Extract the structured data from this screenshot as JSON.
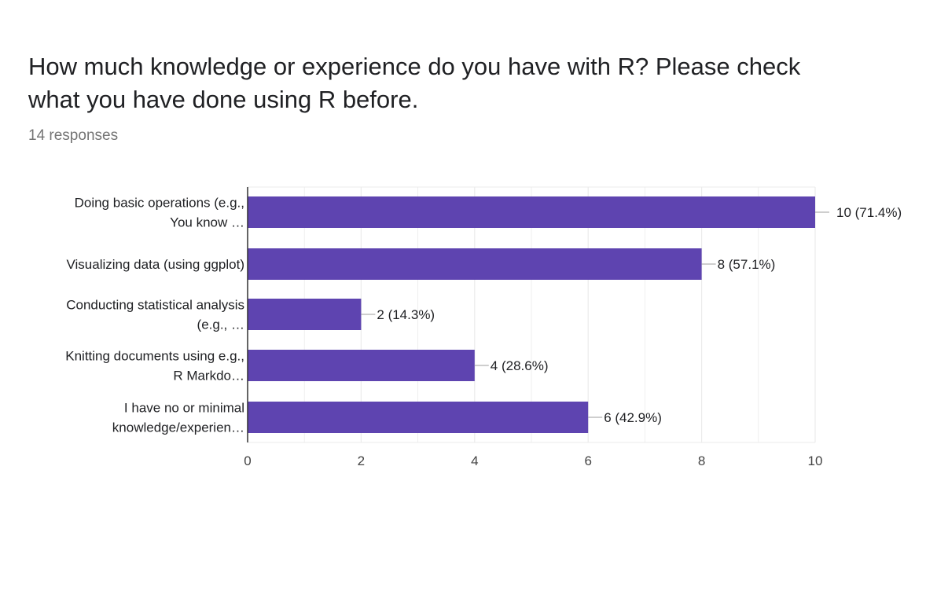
{
  "question": {
    "title": "How much knowledge or experience do you have with R? Please check what you have done using R before.",
    "responses": "14 responses"
  },
  "colors": {
    "bar": "#5e44b0",
    "gridline": "#ebebeb",
    "axis": "#333333",
    "text": "#202124",
    "muted": "#757575"
  },
  "chart_data": {
    "type": "bar",
    "orientation": "horizontal",
    "title": "How much knowledge or experience do you have with R? Please check what you have done using R before.",
    "subtitle": "14 responses",
    "categories": [
      [
        "Doing basic operations (e.g.,",
        "You know …"
      ],
      [
        "Visualizing data (using ggplot)"
      ],
      [
        "Conducting statistical analysis",
        "(e.g., …"
      ],
      [
        "Knitting documents using e.g.,",
        "R Markdo…"
      ],
      [
        "I have no or minimal",
        "knowledge/experien…"
      ]
    ],
    "values": [
      10,
      8,
      2,
      4,
      6
    ],
    "data_labels": [
      "10 (71.4%)",
      "8 (57.1%)",
      "2 (14.3%)",
      "4 (28.6%)",
      "6 (42.9%)"
    ],
    "xlim": [
      0,
      10
    ],
    "xticks": [
      0,
      2,
      4,
      6,
      8,
      10
    ],
    "xlabel": "",
    "ylabel": "",
    "grid": true,
    "legend": "none"
  }
}
